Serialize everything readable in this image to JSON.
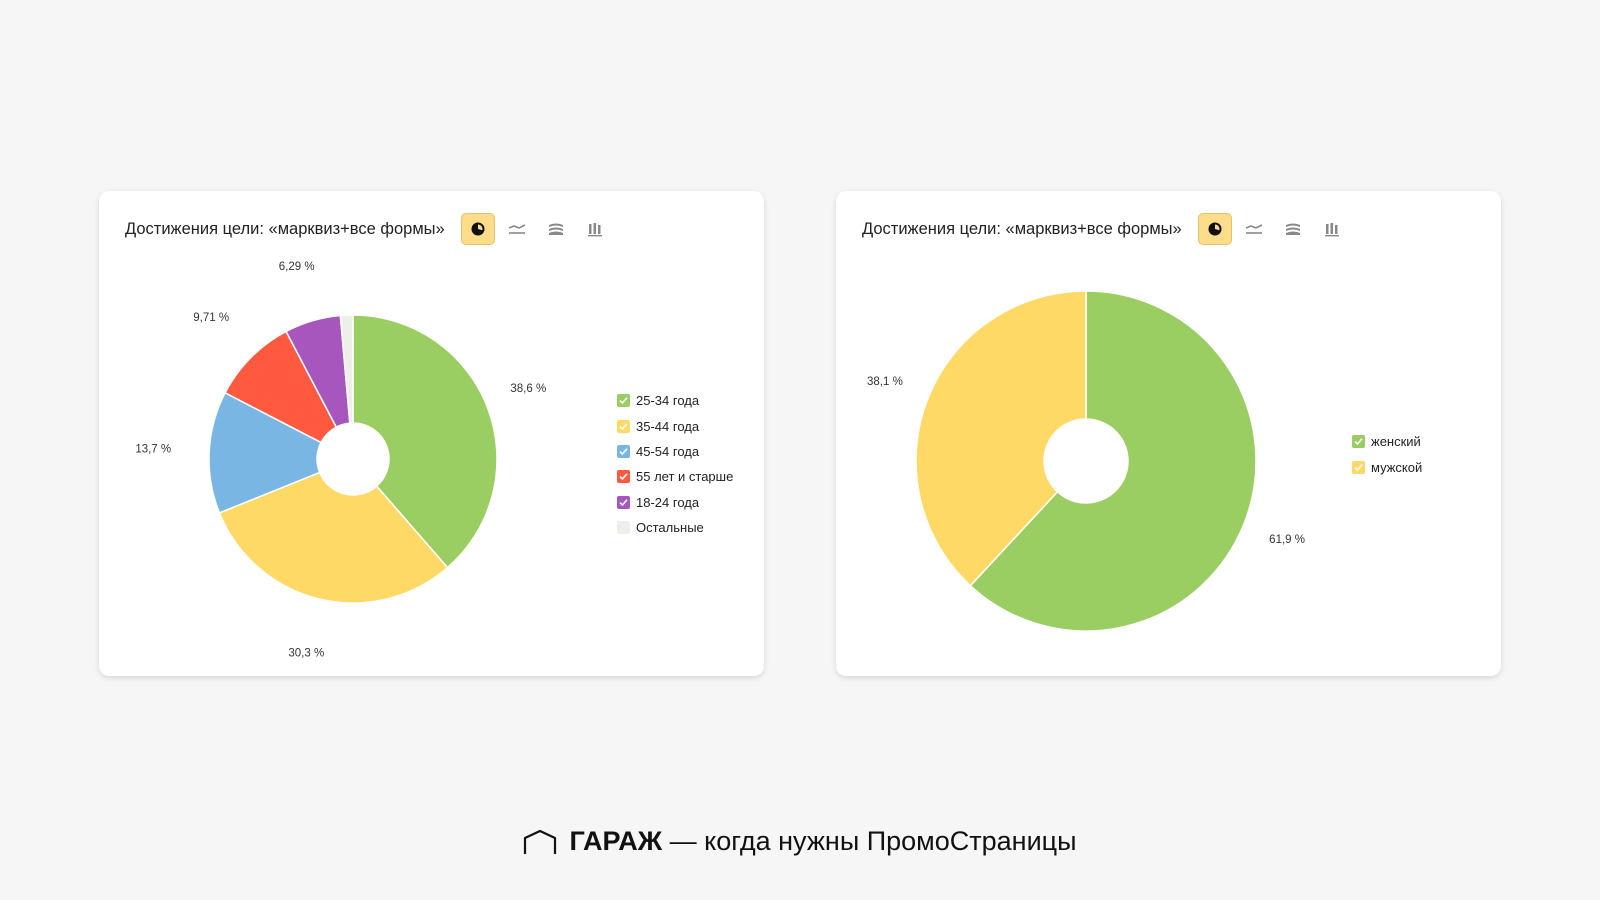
{
  "chart_data": [
    {
      "type": "pie",
      "title": "Достижения цели: «марквиз+все формы»",
      "donut": true,
      "legend_position": "right",
      "categories": [
        "25-34 года",
        "35-44 года",
        "45-54 года",
        "55 лет и старше",
        "18-24 года",
        "Остальные"
      ],
      "values": [
        38.6,
        30.3,
        13.7,
        9.71,
        6.29,
        1.4
      ],
      "labels": [
        "38,6 %",
        "30,3 %",
        "13,7 %",
        "9,71 %",
        "6,29 %",
        ""
      ],
      "colors": [
        "#9acd62",
        "#fed966",
        "#7ab6e4",
        "#ff5a3f",
        "#a656bc",
        "#efefea"
      ]
    },
    {
      "type": "pie",
      "title": "Достижения цели: «марквиз+все формы»",
      "donut": true,
      "legend_position": "right",
      "categories": [
        "женский",
        "мужской"
      ],
      "values": [
        61.9,
        38.1
      ],
      "labels": [
        "61,9 %",
        "38,1 %"
      ],
      "colors": [
        "#9acd62",
        "#fed966"
      ]
    }
  ],
  "toolbar_icons": [
    "pie-chart-icon",
    "line-chart-icon",
    "area-chart-icon",
    "bar-chart-icon"
  ],
  "toolbar_active_color": "#fddc8a",
  "footer": {
    "brand": "ГАРАЖ",
    "text": " — когда нужны ПромоСтраницы"
  }
}
